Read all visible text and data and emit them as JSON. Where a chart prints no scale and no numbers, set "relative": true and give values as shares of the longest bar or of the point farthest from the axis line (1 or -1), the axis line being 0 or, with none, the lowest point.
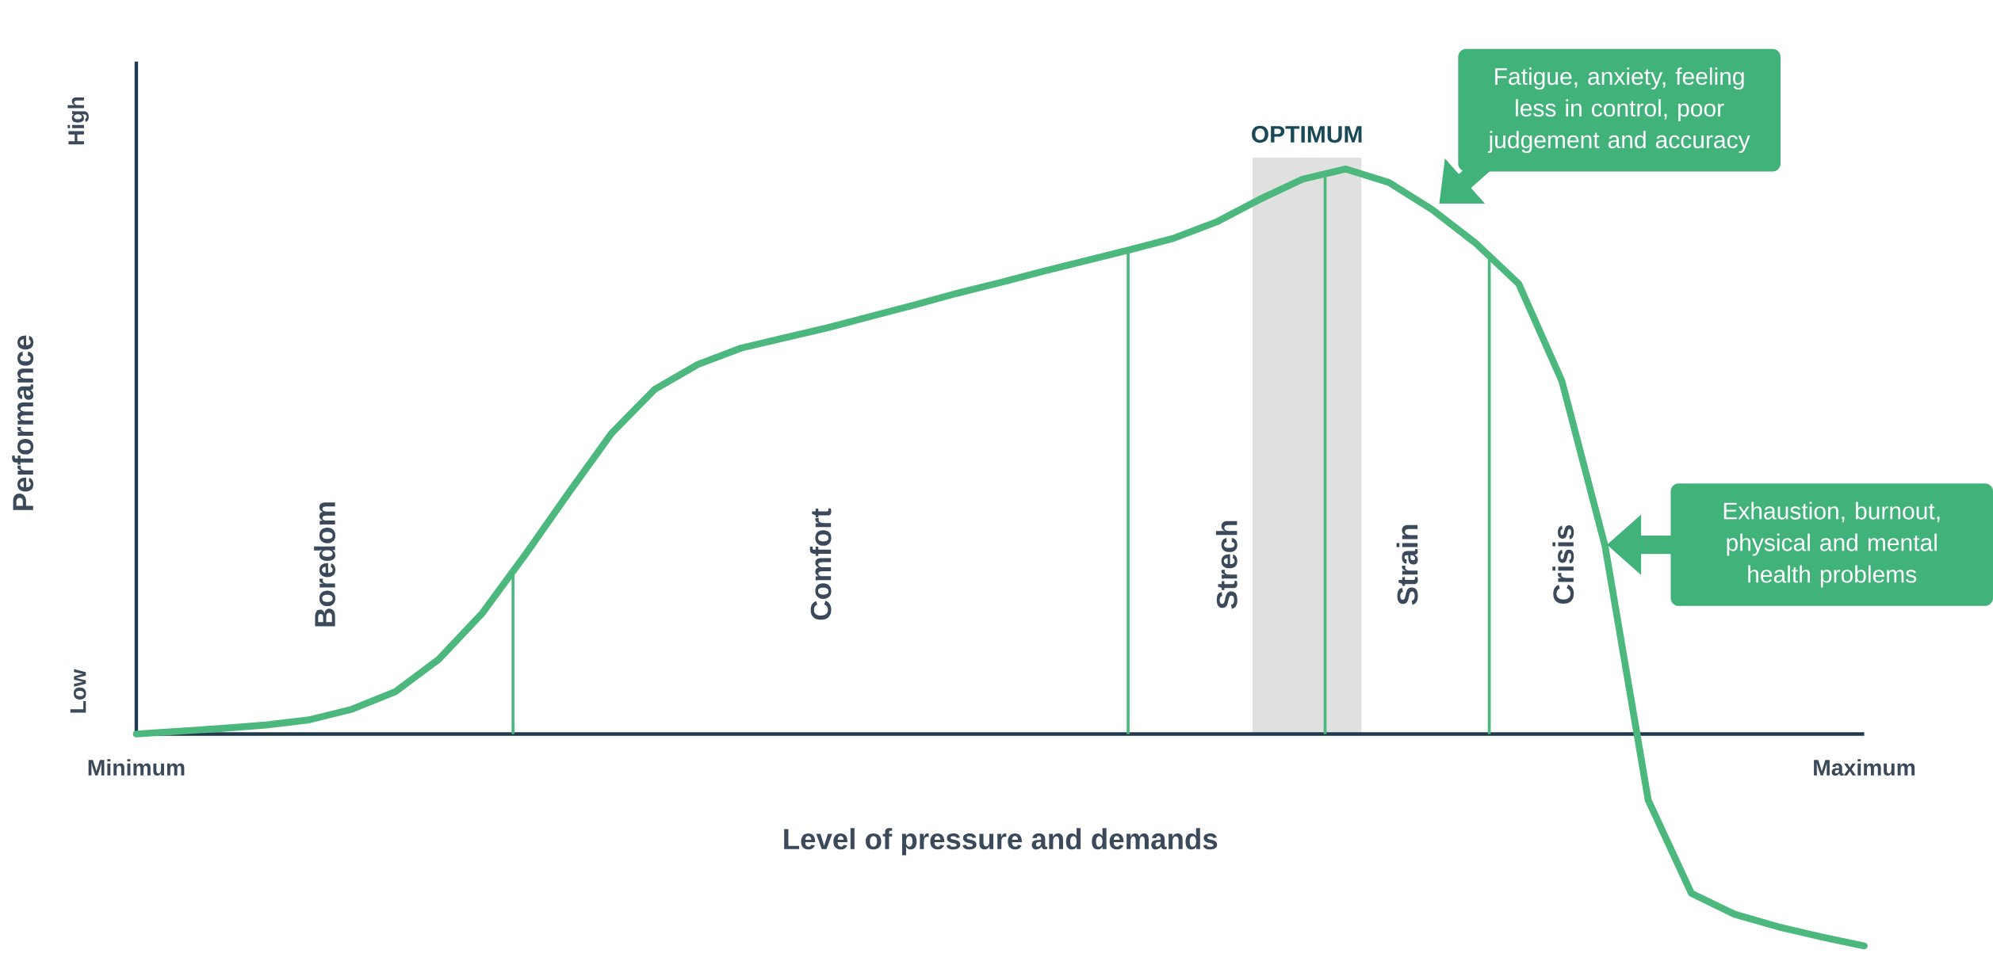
{
  "chart_data": {
    "type": "line",
    "relative": true,
    "xlabel": "Level of pressure and demands",
    "ylabel": "Performance",
    "categories": [
      "Minimum",
      null,
      null,
      null,
      null,
      null,
      null,
      null,
      null,
      null,
      null,
      null,
      null,
      null,
      null,
      null,
      null,
      null,
      null,
      null,
      null,
      null,
      null,
      null,
      null,
      null,
      null,
      null,
      null,
      null,
      null,
      null,
      null,
      null,
      null,
      null,
      null,
      null,
      null,
      null,
      "Maximum"
    ],
    "series": [
      {
        "color": "#4cb87e",
        "values": [
          0,
          0.005,
          0.01,
          0.016,
          0.025,
          0.044,
          0.075,
          0.132,
          0.213,
          0.317,
          0.426,
          0.532,
          0.61,
          0.654,
          0.683,
          0.701,
          0.719,
          0.739,
          0.759,
          0.78,
          0.799,
          0.819,
          0.838,
          0.857,
          0.877,
          0.906,
          0.946,
          0.982,
          1,
          0.976,
          0.928,
          0.869,
          0.797,
          0.625,
          0.333,
          -0.117,
          -0.282,
          -0.319,
          -0.341,
          -0.359,
          -0.375
        ]
      }
    ],
    "annotations": [
      "Low",
      "High",
      "Boredom",
      "Comfort",
      "Strech",
      "Strain",
      "Crisis",
      "OPTIMUM",
      "Fatigue, anxiety, feeling less in control, poor judgement and accuracy",
      "Exhaustion, burnout, physical and mental health problems"
    ]
  }
}
